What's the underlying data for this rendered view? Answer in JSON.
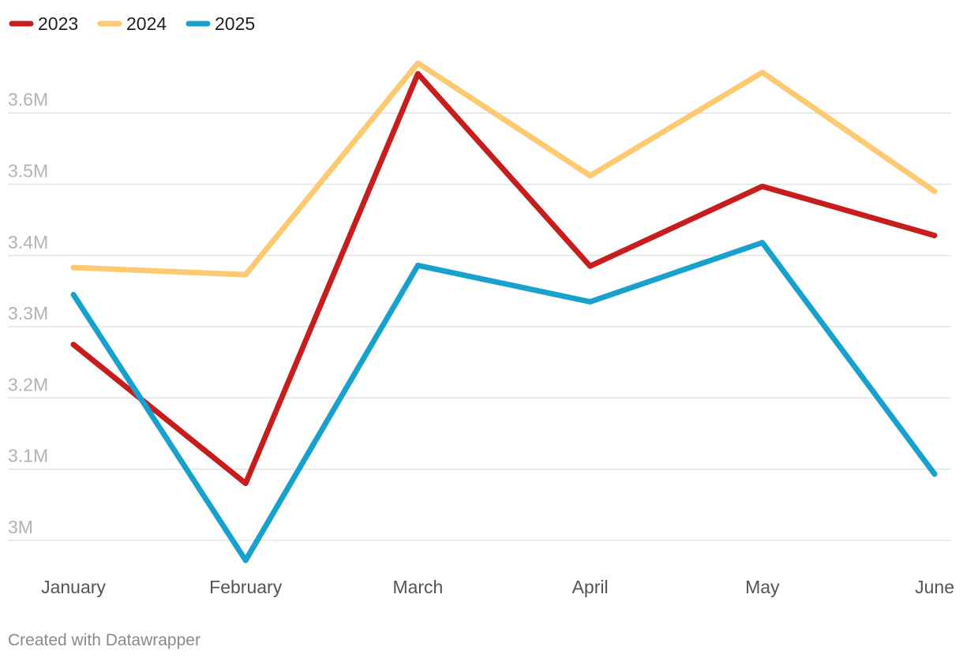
{
  "chart_data": {
    "type": "line",
    "title": "",
    "xlabel": "",
    "ylabel": "",
    "categories": [
      "January",
      "February",
      "March",
      "April",
      "May",
      "June"
    ],
    "y_ticks": [
      {
        "value": 3000000,
        "label": "3M"
      },
      {
        "value": 3100000,
        "label": "3.1M"
      },
      {
        "value": 3200000,
        "label": "3.2M"
      },
      {
        "value": 3300000,
        "label": "3.3M"
      },
      {
        "value": 3400000,
        "label": "3.4M"
      },
      {
        "value": 3500000,
        "label": "3.5M"
      },
      {
        "value": 3600000,
        "label": "3.6M"
      }
    ],
    "ylim": [
      2970000,
      3670000
    ],
    "grid": true,
    "legend_position": "top-left",
    "series": [
      {
        "name": "2023",
        "color": "#c71e1d",
        "values": [
          3275000,
          3080000,
          3655000,
          3385000,
          3497000,
          3428000
        ]
      },
      {
        "name": "2024",
        "color": "#fdca72",
        "values": [
          3383000,
          3373000,
          3670000,
          3512000,
          3657000,
          3490000
        ]
      },
      {
        "name": "2025",
        "color": "#18a1cd",
        "values": [
          3345000,
          2972000,
          3386000,
          3335000,
          3418000,
          3093000
        ]
      }
    ]
  },
  "footer": {
    "credit": "Created with Datawrapper"
  }
}
